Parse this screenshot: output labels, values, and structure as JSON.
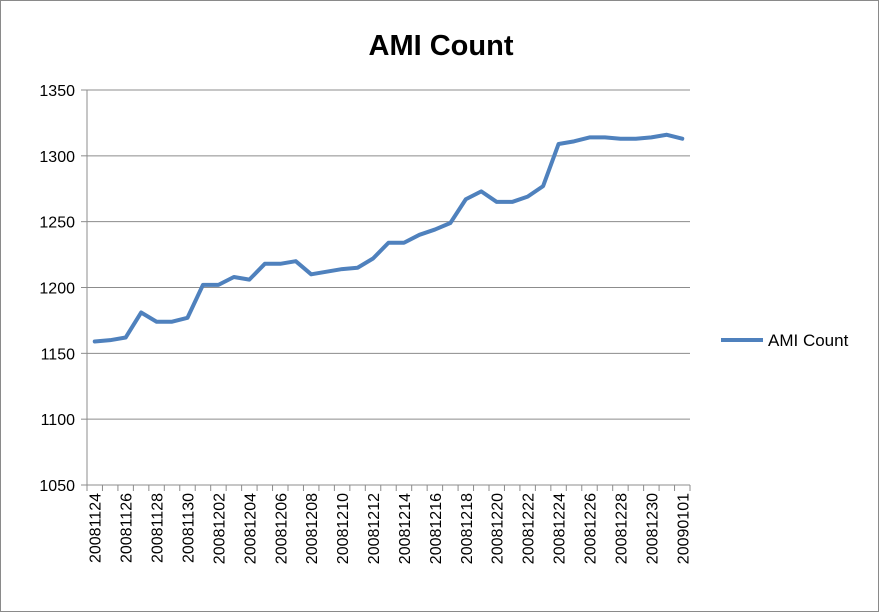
{
  "chart_data": {
    "type": "line",
    "title": "AMI Count",
    "xlabel": "",
    "ylabel": "",
    "ylim": [
      1050,
      1350
    ],
    "yticks": [
      1050,
      1100,
      1150,
      1200,
      1250,
      1300,
      1350
    ],
    "grid": true,
    "legend_position": "right",
    "line_color": "#4F81BD",
    "x": [
      "20081124",
      "20081125",
      "20081126",
      "20081127",
      "20081128",
      "20081129",
      "20081130",
      "20081201",
      "20081202",
      "20081203",
      "20081204",
      "20081205",
      "20081206",
      "20081207",
      "20081208",
      "20081209",
      "20081210",
      "20081211",
      "20081212",
      "20081213",
      "20081214",
      "20081215",
      "20081216",
      "20081217",
      "20081218",
      "20081219",
      "20081220",
      "20081221",
      "20081222",
      "20081223",
      "20081224",
      "20081225",
      "20081226",
      "20081227",
      "20081228",
      "20081229",
      "20081230",
      "20081231",
      "20090101"
    ],
    "xtick_labels": [
      "20081124",
      "20081126",
      "20081128",
      "20081130",
      "20081202",
      "20081204",
      "20081206",
      "20081208",
      "20081210",
      "20081212",
      "20081214",
      "20081216",
      "20081218",
      "20081220",
      "20081222",
      "20081224",
      "20081226",
      "20081228",
      "20081230",
      "20090101"
    ],
    "series": [
      {
        "name": "AMI Count",
        "values": [
          1159,
          1160,
          1162,
          1181,
          1174,
          1174,
          1177,
          1202,
          1202,
          1208,
          1206,
          1218,
          1218,
          1220,
          1210,
          1212,
          1214,
          1215,
          1222,
          1234,
          1234,
          1240,
          1244,
          1249,
          1267,
          1273,
          1265,
          1265,
          1269,
          1277,
          1309,
          1311,
          1314,
          1314,
          1313,
          1313,
          1314,
          1316,
          1313
        ]
      }
    ]
  }
}
